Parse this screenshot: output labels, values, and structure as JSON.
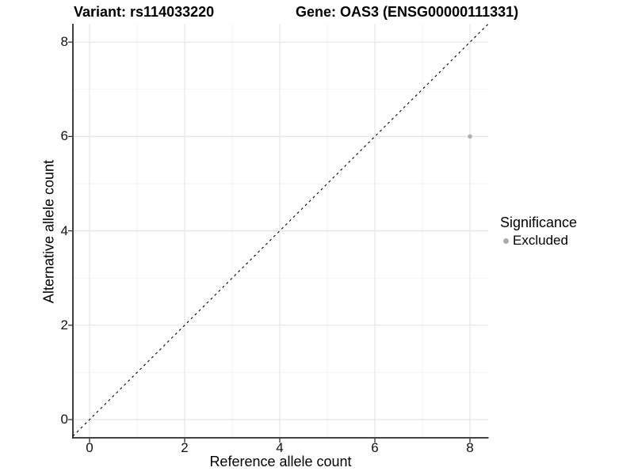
{
  "chart_data": {
    "type": "scatter",
    "titles": {
      "variant": "Variant: rs114033220",
      "gene": "Gene: OAS3 (ENSG00000111331)"
    },
    "xlabel": "Reference allele count",
    "ylabel": "Alternative allele count",
    "xticks": [
      0,
      2,
      4,
      6,
      8
    ],
    "yticks": [
      0,
      2,
      4,
      6,
      8
    ],
    "minor_ticks_x": [
      1,
      3,
      5,
      7
    ],
    "minor_ticks_y": [
      1,
      3,
      5,
      7
    ],
    "xlim": [
      -0.35,
      8.39
    ],
    "ylim": [
      -0.39,
      8.39
    ],
    "grid": "major and minor, light gray, on white background",
    "identity_line": {
      "type": "dashed",
      "equation": "y = x",
      "color": "#000000"
    },
    "series": [
      {
        "name": "Excluded",
        "color": "#b0b0b0",
        "points": [
          {
            "x": 8,
            "y": 6
          }
        ]
      }
    ],
    "legend": {
      "position": "right",
      "title": "Significance",
      "items": [
        {
          "label": "Excluded",
          "color": "#ababab"
        }
      ]
    },
    "colors": {
      "background": "#ffffff",
      "grid_major": "#e5e5e5",
      "grid_minor": "#f2f2f2",
      "axis_line": "#2a2a2a",
      "tick": "#333333",
      "point": "#b0b0b0"
    }
  }
}
